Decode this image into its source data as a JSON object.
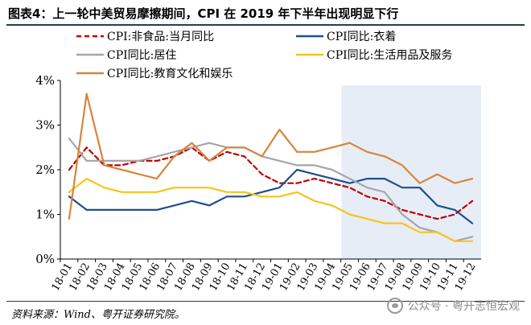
{
  "header": {
    "title": "图表4：上一轮中美贸易摩擦期间，CPI 在 2019 年下半年出现明显下行"
  },
  "footer": {
    "source": "资料来源：Wind、粤开证券研究院。",
    "watermark": "公众号 · 粤开志恒宏观"
  },
  "colors": {
    "food_mom": "#c00000",
    "clothing": "#1f4e8c",
    "housing": "#a6a6a6",
    "daily_goods": "#f5c518",
    "education": "#d9843a",
    "shade": "#e6edf7"
  },
  "chart_data": {
    "type": "line",
    "categories": [
      "18-01",
      "18-02",
      "18-03",
      "18-04",
      "18-05",
      "18-06",
      "18-07",
      "18-08",
      "18-09",
      "18-10",
      "18-11",
      "18-12",
      "19-01",
      "19-02",
      "19-03",
      "19-04",
      "19-05",
      "19-06",
      "19-07",
      "19-08",
      "19-09",
      "19-10",
      "19-11",
      "19-12"
    ],
    "x": [
      "18-01",
      "18-02",
      "18-03",
      "18-04",
      "18-05",
      "18-06",
      "18-07",
      "18-08",
      "18-09",
      "18-10",
      "18-11",
      "18-12",
      "19-01",
      "19-02",
      "19-03",
      "19-04",
      "19-05",
      "19-06",
      "19-07",
      "19-08",
      "19-09",
      "19-10",
      "19-11",
      "19-12"
    ],
    "y_ticks": [
      "0%",
      "1%",
      "2%",
      "3%",
      "4%"
    ],
    "ylim": [
      0,
      4
    ],
    "y_unit": "%",
    "shaded_range": [
      "19-05",
      "19-12"
    ],
    "grid": false,
    "legend_position": "top",
    "series": [
      {
        "name": "CPI:非食品:当月同比",
        "style": "dashed",
        "color_key": "food_mom",
        "values": [
          2.0,
          2.5,
          2.1,
          2.1,
          2.2,
          2.2,
          2.3,
          2.5,
          2.2,
          2.4,
          2.3,
          1.9,
          1.7,
          1.7,
          1.8,
          1.7,
          1.6,
          1.4,
          1.3,
          1.1,
          1.0,
          0.9,
          1.0,
          1.3
        ]
      },
      {
        "name": "CPI同比:衣着",
        "style": "solid",
        "color_key": "clothing",
        "values": [
          1.4,
          1.1,
          1.1,
          1.1,
          1.1,
          1.1,
          1.2,
          1.3,
          1.2,
          1.4,
          1.4,
          1.5,
          1.6,
          2.0,
          1.9,
          1.8,
          1.7,
          1.8,
          1.8,
          1.6,
          1.6,
          1.2,
          1.1,
          0.8
        ]
      },
      {
        "name": "CPI同比:居住",
        "style": "solid",
        "color_key": "housing",
        "values": [
          2.7,
          2.2,
          2.2,
          2.2,
          2.2,
          2.3,
          2.4,
          2.5,
          2.6,
          2.5,
          2.5,
          2.3,
          2.2,
          2.1,
          2.1,
          2.0,
          1.8,
          1.6,
          1.5,
          1.0,
          0.7,
          0.6,
          0.4,
          0.5
        ]
      },
      {
        "name": "CPI同比:生活用品及服务",
        "style": "solid",
        "color_key": "daily_goods",
        "values": [
          1.5,
          1.8,
          1.6,
          1.5,
          1.5,
          1.5,
          1.6,
          1.6,
          1.6,
          1.5,
          1.5,
          1.4,
          1.4,
          1.5,
          1.3,
          1.2,
          1.0,
          0.9,
          0.8,
          0.8,
          0.6,
          0.6,
          0.4,
          0.4
        ]
      },
      {
        "name": "CPI同比:教育文化和娱乐",
        "style": "solid",
        "color_key": "education",
        "values": [
          0.9,
          3.7,
          2.1,
          2.0,
          1.9,
          1.8,
          2.3,
          2.6,
          2.2,
          2.5,
          2.5,
          2.3,
          2.9,
          2.4,
          2.4,
          2.5,
          2.6,
          2.4,
          2.3,
          2.1,
          1.7,
          1.9,
          1.7,
          1.8
        ]
      }
    ]
  }
}
